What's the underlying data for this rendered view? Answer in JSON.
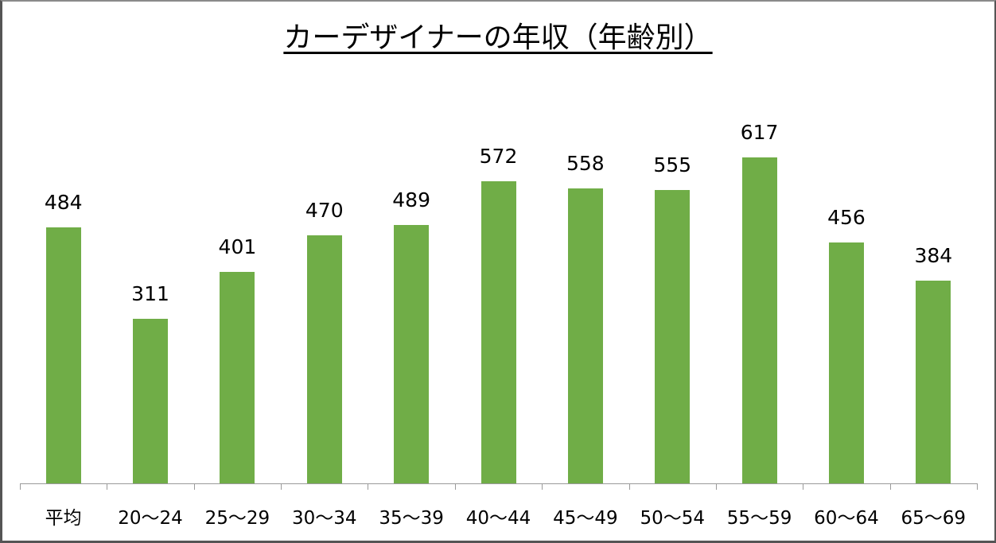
{
  "chart_data": {
    "type": "bar",
    "title": "カーデザイナーの年収（年齢別）",
    "xlabel": "",
    "ylabel": "",
    "categories": [
      "平均",
      "20〜24",
      "25〜29",
      "30〜34",
      "35〜39",
      "40〜44",
      "45〜49",
      "50〜54",
      "55〜59",
      "60〜64",
      "65〜69"
    ],
    "values": [
      484,
      311,
      401,
      470,
      489,
      572,
      558,
      555,
      617,
      456,
      384
    ],
    "data_labels": true,
    "grid": false,
    "legend": null,
    "ylim": [
      0,
      617
    ],
    "bar_color": "#70ad47"
  }
}
